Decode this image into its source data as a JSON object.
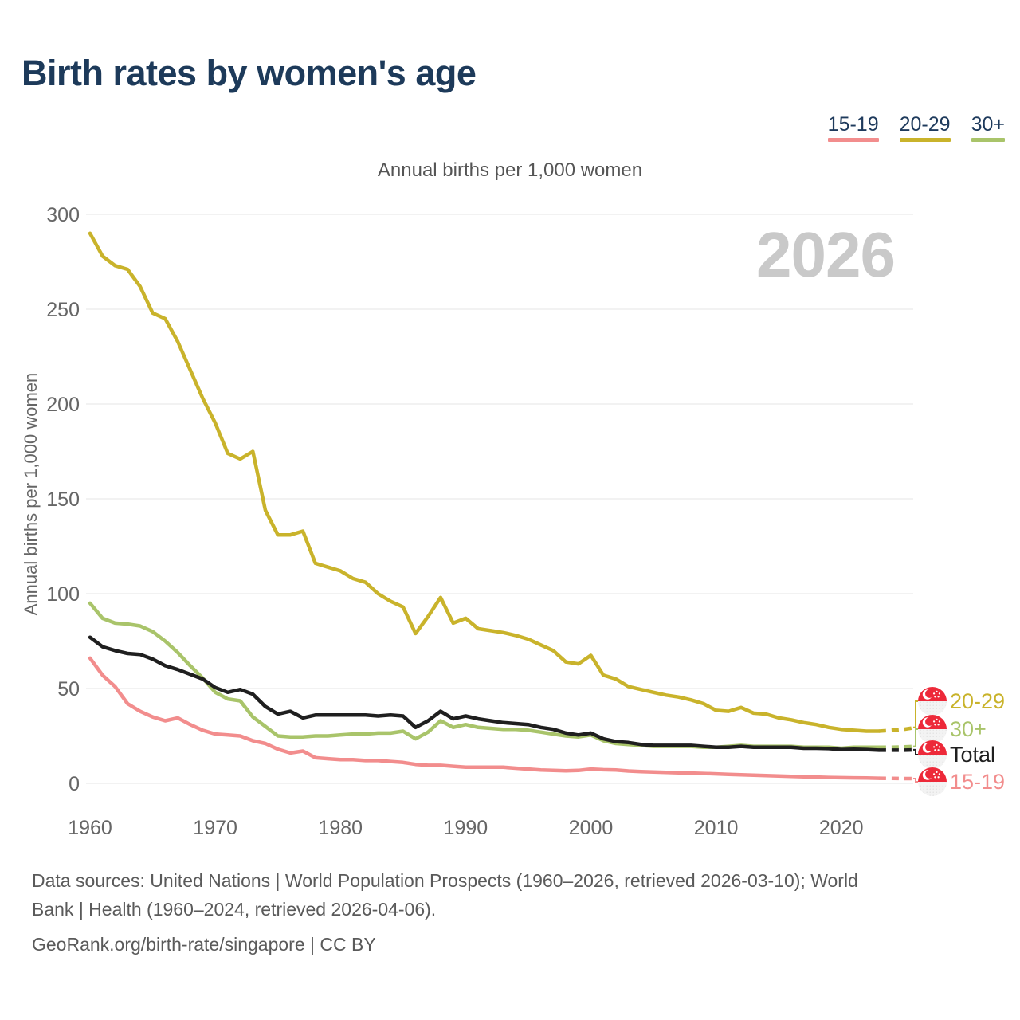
{
  "title": "Birth rates by women's age",
  "subtitle": "Annual births per 1,000 women",
  "y_axis_title": "Annual births per 1,000 women",
  "watermark": "2026",
  "colors": {
    "title_navy": "#1d3a5a",
    "grid": "#e9e9e9",
    "tick_text": "#666666",
    "watermark_gray": "#c9c9c9",
    "flag_red": "#ed2939",
    "flag_white": "#f3f3f3"
  },
  "legend": {
    "items": [
      {
        "label": "15-19",
        "color": "#f28d8d"
      },
      {
        "label": "20-29",
        "color": "#c9b32b"
      },
      {
        "label": "30+",
        "color": "#a9c46a"
      }
    ]
  },
  "chart_data": {
    "type": "line",
    "title": "Birth rates by women's age",
    "subtitle": "Annual births per 1,000 women",
    "ylabel": "Annual births per 1,000 women",
    "xlabel": "",
    "ylim": [
      0,
      300
    ],
    "yticks": [
      0,
      50,
      100,
      150,
      200,
      250,
      300
    ],
    "xticks": [
      1960,
      1970,
      1980,
      1990,
      2000,
      2010,
      2020
    ],
    "grid": "horizontal",
    "legend_position": "top-right",
    "projection_from": 2023,
    "x": [
      1960,
      1961,
      1962,
      1963,
      1964,
      1965,
      1966,
      1967,
      1968,
      1969,
      1970,
      1971,
      1972,
      1973,
      1974,
      1975,
      1976,
      1977,
      1978,
      1979,
      1980,
      1981,
      1982,
      1983,
      1984,
      1985,
      1986,
      1987,
      1988,
      1989,
      1990,
      1991,
      1992,
      1993,
      1994,
      1995,
      1996,
      1997,
      1998,
      1999,
      2000,
      2001,
      2002,
      2003,
      2004,
      2005,
      2006,
      2007,
      2008,
      2009,
      2010,
      2011,
      2012,
      2013,
      2014,
      2015,
      2016,
      2017,
      2018,
      2019,
      2020,
      2021,
      2022,
      2023,
      2024,
      2025,
      2026
    ],
    "series": [
      {
        "name": "20-29",
        "color": "#c9b32b",
        "values": [
          290,
          278,
          273,
          271,
          262,
          248,
          245,
          233,
          218,
          203,
          190,
          174,
          171,
          175,
          144,
          131,
          131,
          133,
          116,
          114,
          112,
          108,
          106,
          100,
          96,
          93,
          79,
          88,
          98,
          84.5,
          87,
          81.5,
          80.5,
          79.5,
          78,
          76,
          73,
          70,
          64,
          63,
          67.5,
          57,
          55,
          51,
          49.5,
          48,
          46.5,
          45.5,
          44,
          42,
          38.5,
          38,
          40,
          37,
          36.5,
          34.5,
          33.5,
          32,
          31,
          29.5,
          28.5,
          28,
          27.5,
          27.5,
          28,
          28.5,
          29.5
        ]
      },
      {
        "name": "30+",
        "color": "#a9c46a",
        "values": [
          95,
          87,
          84.5,
          84,
          83,
          80,
          75,
          69,
          62,
          55.5,
          48,
          44.5,
          43.5,
          35,
          30,
          25,
          24.5,
          24.5,
          25,
          25,
          25.5,
          26,
          26,
          26.5,
          26.5,
          27.5,
          23.5,
          27,
          33,
          29.5,
          31,
          29.5,
          29,
          28.5,
          28.5,
          28,
          27,
          26,
          25,
          24.5,
          25.5,
          22.5,
          21,
          20.5,
          20,
          19.5,
          19.5,
          19.5,
          19.5,
          19,
          19,
          19.5,
          20,
          19.5,
          19.5,
          19.5,
          19.5,
          19,
          19,
          19,
          18.5,
          19,
          19,
          19,
          19,
          19.2,
          19.5
        ]
      },
      {
        "name": "Total",
        "color": "#1f1f1f",
        "values": [
          77,
          72,
          70,
          68.5,
          68,
          65.5,
          62,
          60,
          57.5,
          55,
          50.5,
          48,
          49.5,
          47,
          40.5,
          36.5,
          38,
          34.5,
          36,
          36,
          36,
          36,
          36,
          35.5,
          36,
          35.5,
          29.5,
          33,
          38,
          34,
          35.5,
          34,
          33,
          32,
          31.5,
          31,
          29.5,
          28.5,
          26.5,
          25.5,
          26.5,
          23.5,
          22,
          21.5,
          20.5,
          20,
          20,
          20,
          20,
          19.5,
          19,
          19,
          19.5,
          19,
          19,
          19,
          19,
          18.5,
          18.5,
          18.3,
          17.8,
          18,
          17.8,
          17.5,
          17.5,
          17.5,
          17.7
        ]
      },
      {
        "name": "15-19",
        "color": "#f28d8d",
        "values": [
          66,
          57,
          51,
          42,
          38,
          35,
          33,
          34.5,
          31,
          28,
          26,
          25.5,
          25,
          22.5,
          21,
          18,
          16,
          17,
          13.5,
          13,
          12.5,
          12.5,
          12,
          12,
          11.5,
          11,
          10,
          9.5,
          9.5,
          9,
          8.5,
          8.5,
          8.5,
          8.5,
          8,
          7.5,
          7,
          6.8,
          6.6,
          6.8,
          7.5,
          7.2,
          7,
          6.5,
          6.2,
          6,
          5.8,
          5.6,
          5.4,
          5.2,
          5,
          4.7,
          4.5,
          4.3,
          4.1,
          3.9,
          3.7,
          3.5,
          3.3,
          3.1,
          3,
          2.9,
          2.8,
          2.7,
          2.6,
          2.5,
          2.5
        ]
      }
    ],
    "end_labels": [
      {
        "series": "20-29",
        "y": 880
      },
      {
        "series": "30+",
        "y": 915
      },
      {
        "series": "Total",
        "y": 947
      },
      {
        "series": "15-19",
        "y": 981
      }
    ]
  },
  "footer": {
    "lines": [
      "Data sources: United Nations | World Population Prospects (1960–2026, retrieved 2026-03-10); World",
      "Bank | Health (1960–2024, retrieved 2026-04-06).",
      "GeoRank.org/birth-rate/singapore | CC BY"
    ]
  }
}
